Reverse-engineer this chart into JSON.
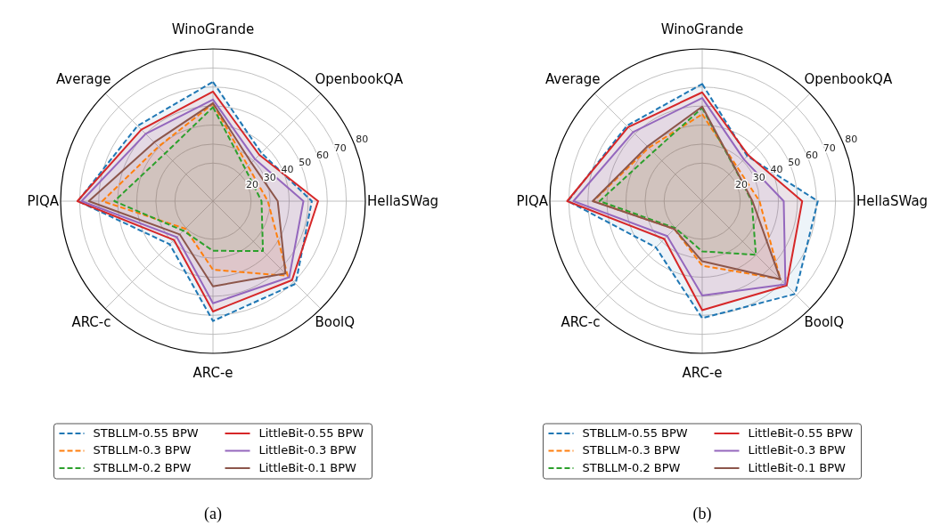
{
  "chart_data": [
    {
      "type": "radar",
      "categories": [
        "WinoGrande",
        "OpenbookQA",
        "HellaSWag",
        "BoolQ",
        "ARC-e",
        "ARC-c",
        "PIQA",
        "Average"
      ],
      "ylim": [
        0,
        80
      ],
      "yticks": [
        20,
        30,
        40,
        50,
        60,
        70,
        80
      ],
      "grid": true,
      "legend": "bottom",
      "marker": "none",
      "annotations": [
        "(a)"
      ],
      "series": [
        {
          "name": "STBLLM-0.55 BPW",
          "color": "#1f77b4",
          "line_style": "dashed",
          "values": [
            62.7,
            35.9,
            51.9,
            61.4,
            63,
            32.1,
            70.9,
            56
          ]
        },
        {
          "name": "STBLLM-0.3 BPW",
          "color": "#ff7f0e",
          "line_style": "dashed",
          "values": [
            51.2,
            26,
            28.8,
            55.5,
            36.1,
            20.5,
            58.1,
            40.5
          ]
        },
        {
          "name": "STBLLM-0.2 BPW",
          "color": "#2ca02c",
          "line_style": "dashed",
          "values": [
            49.4,
            24,
            25.5,
            37.1,
            26.1,
            22,
            51.8,
            35.5
          ]
        },
        {
          "name": "LittleBit-0.55 BPW",
          "color": "#d62728",
          "line_style": "solid",
          "values": [
            57.6,
            34.4,
            55.2,
            58.7,
            58,
            28.9,
            71.2,
            53.2
          ]
        },
        {
          "name": "LittleBit-0.3 BPW",
          "color": "#9467bd",
          "line_style": "solid",
          "values": [
            53.4,
            31.2,
            47.5,
            56.6,
            53.7,
            26.8,
            69,
            50
          ]
        },
        {
          "name": "LittleBit-0.1 BPW",
          "color": "#8c564b",
          "line_style": "solid",
          "values": [
            51.5,
            28.5,
            34,
            53.8,
            44.8,
            24.7,
            65.2,
            43.7
          ]
        }
      ]
    },
    {
      "type": "radar",
      "categories": [
        "WinoGrande",
        "OpenbookQA",
        "HellaSWag",
        "BoolQ",
        "ARC-e",
        "ARC-c",
        "PIQA",
        "Average"
      ],
      "ylim": [
        0,
        80
      ],
      "yticks": [
        20,
        30,
        40,
        50,
        60,
        70,
        80
      ],
      "grid": true,
      "legend": "bottom",
      "marker": "none",
      "annotations": [
        "(b)"
      ],
      "series": [
        {
          "name": "STBLLM-0.55 BPW",
          "color": "#1f77b4",
          "line_style": "dashed",
          "values": [
            61.6,
            33.5,
            60.7,
            69,
            61.5,
            34.4,
            70.5,
            56
          ]
        },
        {
          "name": "STBLLM-0.3 BPW",
          "color": "#ff7f0e",
          "line_style": "dashed",
          "values": [
            45.7,
            25.7,
            30.1,
            58,
            33.9,
            20.7,
            57.2,
            39.7
          ]
        },
        {
          "name": "STBLLM-0.2 BPW",
          "color": "#2ca02c",
          "line_style": "dashed",
          "values": [
            49,
            24.3,
            26,
            39.9,
            26.4,
            20,
            53.9,
            36.5
          ]
        },
        {
          "name": "LittleBit-0.55 BPW",
          "color": "#d62728",
          "line_style": "solid",
          "values": [
            57.2,
            34.2,
            52.5,
            62.7,
            57.3,
            28.1,
            70.9,
            55
          ]
        },
        {
          "name": "LittleBit-0.3 BPW",
          "color": "#9467bd",
          "line_style": "solid",
          "values": [
            54.2,
            31,
            42.8,
            61.8,
            49.6,
            26,
            67.6,
            51.3
          ]
        },
        {
          "name": "LittleBit-0.1 BPW",
          "color": "#8c564b",
          "line_style": "solid",
          "values": [
            49.7,
            24.5,
            26.4,
            58,
            31.6,
            20.7,
            57.5,
            40.7
          ]
        }
      ]
    }
  ]
}
